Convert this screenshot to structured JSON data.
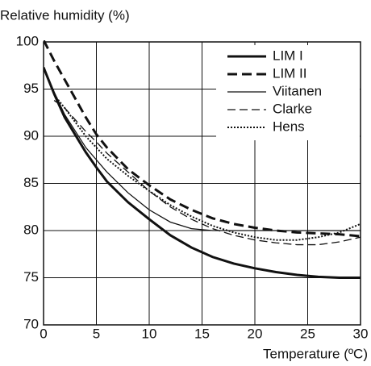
{
  "chart_data": {
    "type": "line",
    "y_label": "Relative humidity (%)",
    "x_label": "Temperature (ºC)",
    "x": [
      0,
      1,
      2,
      4,
      5,
      6,
      8,
      10,
      12,
      14,
      16,
      18,
      20,
      22,
      24,
      26,
      28,
      30
    ],
    "series": [
      {
        "name": "LIM I",
        "color": "#111111",
        "line_style": "solid",
        "line_width": 3,
        "values": [
          97.3,
          94.5,
          92,
          88.3,
          86.7,
          85.2,
          83,
          81.2,
          79.5,
          78.2,
          77.2,
          76.5,
          76,
          75.6,
          75.3,
          75.1,
          75,
          75
        ]
      },
      {
        "name": "LIM II",
        "color": "#111111",
        "line_style": "dashed",
        "line_width": 3,
        "values": [
          100.2,
          98,
          96,
          92,
          90.2,
          88.8,
          86.5,
          84.8,
          83.3,
          82.2,
          81.3,
          80.7,
          80.3,
          80,
          79.8,
          79.7,
          79.6,
          79.4
        ]
      },
      {
        "name": "Viitanen",
        "color": "#111111",
        "line_style": "solid",
        "line_width": 1.3,
        "values": [
          97.3,
          94.7,
          92.3,
          88.8,
          87.5,
          86.2,
          84,
          82.2,
          80.9,
          80.2,
          80,
          80,
          80,
          80,
          80,
          80,
          80,
          80
        ]
      },
      {
        "name": "Clarke",
        "color": "#111111",
        "line_style": "dashed",
        "line_width": 1.3,
        "values": [
          null,
          93.8,
          93,
          90.5,
          89.4,
          88.2,
          86.2,
          84.2,
          82.5,
          81.2,
          80.2,
          79.5,
          79,
          78.7,
          78.5,
          78.5,
          78.8,
          79.3
        ]
      },
      {
        "name": "Hens",
        "color": "#111111",
        "line_style": "dotted",
        "line_width": 2,
        "values": [
          null,
          94.4,
          93,
          90,
          88.8,
          87.6,
          85.8,
          84.2,
          82.7,
          81.5,
          80.5,
          79.8,
          79.3,
          79,
          79,
          79.3,
          79.8,
          80.7
        ]
      }
    ],
    "xlim": [
      0,
      30
    ],
    "xticks": [
      0,
      5,
      10,
      15,
      20,
      25,
      30
    ],
    "ylim": [
      70,
      100
    ],
    "yticks": [
      70,
      75,
      80,
      85,
      90,
      95,
      100
    ],
    "grid": true,
    "legend_position": "upper right"
  }
}
